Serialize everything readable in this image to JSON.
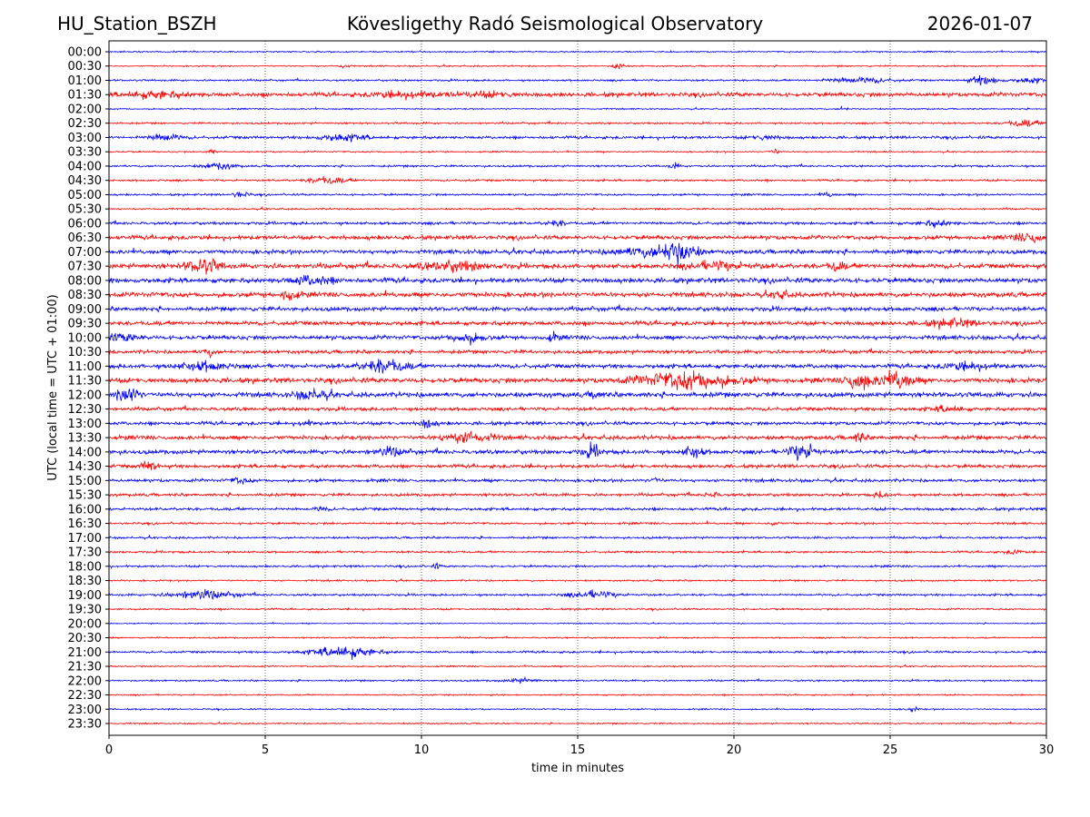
{
  "header": {
    "station": "HU_Station_BSZH",
    "observatory": "Kövesligethy Radó Seismological Observatory",
    "date": "2026-01-07"
  },
  "chart_data": {
    "type": "line",
    "title": "Kövesligethy Radó Seismological Observatory",
    "xlabel": "time in minutes",
    "ylabel": "UTC (local time = UTC + 01:00)",
    "xlim": [
      0,
      30
    ],
    "xticks": [
      0,
      5,
      10,
      15,
      20,
      25,
      30
    ],
    "grid": "vertical dotted at x ticks",
    "colors": {
      "even": "#0000ff",
      "odd": "#ff0000"
    },
    "traces": [
      {
        "label": "00:00",
        "noise": 0.1,
        "events": []
      },
      {
        "label": "00:30",
        "noise": 0.1,
        "events": [
          [
            7.5,
            0.4,
            0.3
          ],
          [
            16.3,
            0.7,
            0.3
          ]
        ]
      },
      {
        "label": "01:00",
        "noise": 0.13,
        "events": [
          [
            24,
            0.4,
            2
          ],
          [
            28,
            0.6,
            1
          ],
          [
            29.5,
            0.4,
            1
          ]
        ]
      },
      {
        "label": "01:30",
        "noise": 0.3,
        "events": [
          [
            1.5,
            0.4,
            2
          ],
          [
            9.5,
            0.4,
            2
          ],
          [
            12,
            0.3,
            2
          ]
        ]
      },
      {
        "label": "02:00",
        "noise": 0.1,
        "events": [
          [
            23.5,
            0.3,
            0.3
          ]
        ]
      },
      {
        "label": "02:30",
        "noise": 0.13,
        "events": [
          [
            29.3,
            0.5,
            1
          ]
        ]
      },
      {
        "label": "03:00",
        "noise": 0.2,
        "events": [
          [
            1.8,
            0.5,
            1
          ],
          [
            7.5,
            0.5,
            1.5
          ],
          [
            21,
            0.3,
            1
          ]
        ]
      },
      {
        "label": "03:30",
        "noise": 0.1,
        "events": [
          [
            3.3,
            0.4,
            0.3
          ],
          [
            21.3,
            0.4,
            0.3
          ]
        ]
      },
      {
        "label": "04:00",
        "noise": 0.14,
        "events": [
          [
            3.5,
            0.5,
            1
          ],
          [
            18.1,
            0.4,
            0.3
          ]
        ]
      },
      {
        "label": "04:30",
        "noise": 0.14,
        "events": [
          [
            7,
            0.5,
            1.2
          ]
        ]
      },
      {
        "label": "05:00",
        "noise": 0.14,
        "events": [
          [
            4.2,
            0.4,
            0.5
          ],
          [
            23,
            0.3,
            0.5
          ]
        ]
      },
      {
        "label": "05:30",
        "noise": 0.12,
        "events": []
      },
      {
        "label": "06:00",
        "noise": 0.2,
        "events": [
          [
            14.3,
            0.4,
            0.6
          ],
          [
            26.5,
            0.4,
            1
          ]
        ]
      },
      {
        "label": "06:30",
        "noise": 0.3,
        "events": [
          [
            29.5,
            0.6,
            1
          ]
        ]
      },
      {
        "label": "07:00",
        "noise": 0.3,
        "events": [
          [
            17,
            0.5,
            2
          ],
          [
            18.2,
            1.5,
            1.2
          ]
        ]
      },
      {
        "label": "07:30",
        "noise": 0.35,
        "events": [
          [
            3,
            1.0,
            1
          ],
          [
            11,
            0.6,
            2
          ],
          [
            19.5,
            0.5,
            2
          ],
          [
            23.3,
            0.7,
            0.5
          ]
        ]
      },
      {
        "label": "08:00",
        "noise": 0.35,
        "events": [
          [
            6.5,
            0.6,
            1.2
          ]
        ]
      },
      {
        "label": "08:30",
        "noise": 0.35,
        "events": [
          [
            5.8,
            0.8,
            0.5
          ],
          [
            21.5,
            0.6,
            0.5
          ]
        ]
      },
      {
        "label": "09:00",
        "noise": 0.3,
        "events": []
      },
      {
        "label": "09:30",
        "noise": 0.3,
        "events": [
          [
            27,
            0.5,
            1.5
          ]
        ]
      },
      {
        "label": "10:00",
        "noise": 0.3,
        "events": [
          [
            0.5,
            0.5,
            1
          ],
          [
            11.5,
            0.7,
            1
          ],
          [
            14.2,
            0.5,
            0.4
          ]
        ]
      },
      {
        "label": "10:30",
        "noise": 0.25,
        "events": [
          [
            3.2,
            0.5,
            0.4
          ]
        ]
      },
      {
        "label": "11:00",
        "noise": 0.3,
        "events": [
          [
            3,
            0.6,
            1.5
          ],
          [
            8.8,
            0.9,
            1.5
          ],
          [
            27.5,
            0.5,
            1.5
          ]
        ]
      },
      {
        "label": "11:30",
        "noise": 0.35,
        "events": [
          [
            18.5,
            1.2,
            3
          ],
          [
            24,
            1.3,
            0.8
          ],
          [
            25.2,
            1.3,
            1
          ]
        ]
      },
      {
        "label": "12:00",
        "noise": 0.35,
        "events": [
          [
            0.6,
            1.6,
            0.6
          ],
          [
            6.5,
            0.7,
            1
          ],
          [
            15.6,
            0.5,
            0.4
          ]
        ]
      },
      {
        "label": "12:30",
        "noise": 0.25,
        "events": [
          [
            26.8,
            0.4,
            1
          ]
        ]
      },
      {
        "label": "13:00",
        "noise": 0.25,
        "events": [
          [
            10.2,
            0.6,
            0.5
          ],
          [
            6.3,
            0.4,
            0.4
          ]
        ]
      },
      {
        "label": "13:30",
        "noise": 0.3,
        "events": [
          [
            11.5,
            0.8,
            1.5
          ],
          [
            24,
            0.6,
            0.4
          ]
        ]
      },
      {
        "label": "14:00",
        "noise": 0.3,
        "events": [
          [
            9,
            0.5,
            1
          ],
          [
            15.5,
            0.8,
            0.6
          ],
          [
            18.7,
            0.9,
            0.6
          ],
          [
            22.2,
            1.3,
            0.8
          ]
        ]
      },
      {
        "label": "14:30",
        "noise": 0.25,
        "events": [
          [
            1.3,
            0.7,
            0.5
          ]
        ]
      },
      {
        "label": "15:00",
        "noise": 0.22,
        "events": [
          [
            4.2,
            0.4,
            0.6
          ],
          [
            17.5,
            0.4,
            0.3
          ]
        ]
      },
      {
        "label": "15:30",
        "noise": 0.2,
        "events": [
          [
            19.3,
            0.4,
            0.4
          ],
          [
            24.7,
            0.4,
            0.4
          ]
        ]
      },
      {
        "label": "16:00",
        "noise": 0.2,
        "events": [
          [
            6.8,
            0.3,
            0.4
          ]
        ]
      },
      {
        "label": "16:30",
        "noise": 0.15,
        "events": [
          [
            21.3,
            0.3,
            0.3
          ]
        ]
      },
      {
        "label": "17:00",
        "noise": 0.15,
        "events": []
      },
      {
        "label": "17:30",
        "noise": 0.15,
        "events": [
          [
            29,
            0.3,
            0.5
          ]
        ]
      },
      {
        "label": "18:00",
        "noise": 0.15,
        "events": [
          [
            10.5,
            0.4,
            0.2
          ]
        ]
      },
      {
        "label": "18:30",
        "noise": 0.12,
        "events": []
      },
      {
        "label": "19:00",
        "noise": 0.15,
        "events": [
          [
            3,
            0.6,
            2
          ],
          [
            15.5,
            0.5,
            1.5
          ]
        ]
      },
      {
        "label": "19:30",
        "noise": 0.12,
        "events": []
      },
      {
        "label": "20:00",
        "noise": 0.08,
        "events": []
      },
      {
        "label": "20:30",
        "noise": 0.1,
        "events": []
      },
      {
        "label": "21:00",
        "noise": 0.15,
        "events": [
          [
            7.5,
            0.8,
            2
          ]
        ]
      },
      {
        "label": "21:30",
        "noise": 0.1,
        "events": []
      },
      {
        "label": "22:00",
        "noise": 0.12,
        "events": [
          [
            13.2,
            0.3,
            1
          ]
        ]
      },
      {
        "label": "22:30",
        "noise": 0.1,
        "events": []
      },
      {
        "label": "23:00",
        "noise": 0.1,
        "events": [
          [
            25.7,
            0.3,
            0.4
          ]
        ]
      },
      {
        "label": "23:30",
        "noise": 0.1,
        "events": []
      }
    ]
  }
}
